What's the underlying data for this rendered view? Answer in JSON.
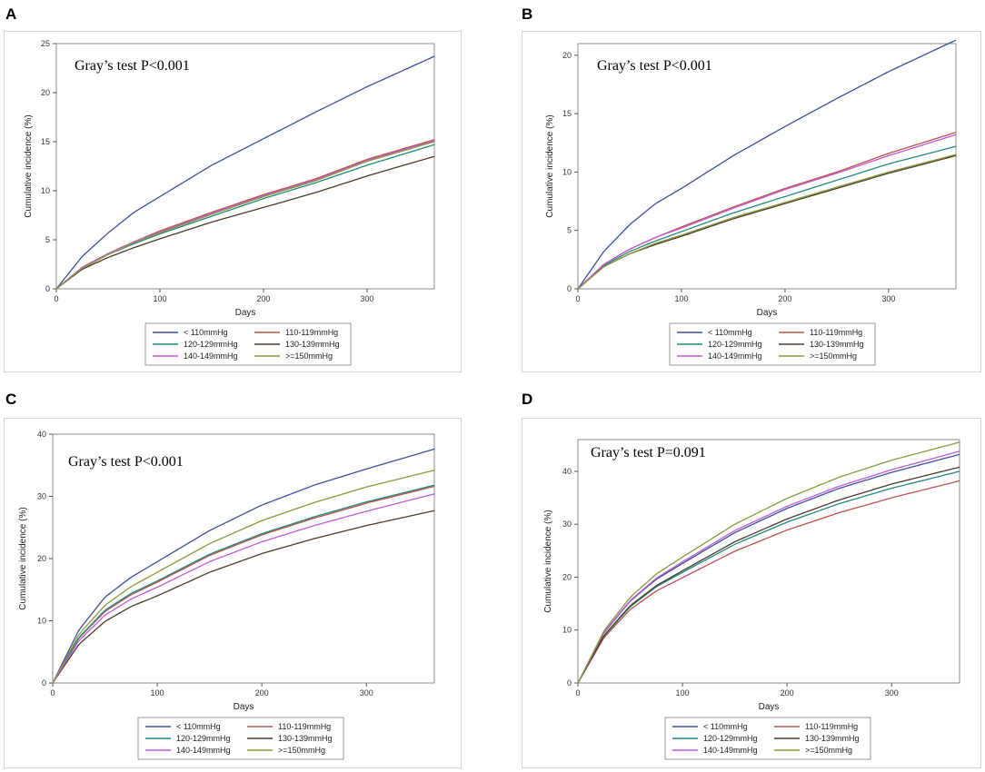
{
  "figure": {
    "panel_labels": [
      "A",
      "B",
      "C",
      "D"
    ]
  },
  "chart_data": [
    {
      "panel": "A",
      "type": "line",
      "annotation": "Gray’s test P<0.001",
      "xlabel": "Days",
      "ylabel": "Cumulative incidence (%)",
      "xlim": [
        0,
        365
      ],
      "ylim": [
        0,
        25
      ],
      "xticks": [
        0,
        100,
        200,
        300
      ],
      "yticks": [
        0,
        5,
        10,
        15,
        20,
        25
      ],
      "x": [
        0,
        25,
        50,
        75,
        100,
        150,
        200,
        250,
        300,
        365
      ],
      "series": [
        {
          "name": "< 110mmHg",
          "color": "#3c4f9e",
          "values": [
            0,
            3.3,
            5.7,
            7.8,
            9.4,
            12.6,
            15.3,
            18.0,
            20.6,
            23.7
          ]
        },
        {
          "name": "110-119mmHg",
          "color": "#c0504d",
          "values": [
            0,
            2.2,
            3.6,
            4.8,
            5.9,
            7.8,
            9.6,
            11.2,
            13.2,
            15.2
          ]
        },
        {
          "name": "120-129mmHg",
          "color": "#1f8a7c",
          "values": [
            0,
            2.1,
            3.5,
            4.6,
            5.6,
            7.4,
            9.2,
            10.8,
            12.6,
            14.7
          ]
        },
        {
          "name": "130-139mmHg",
          "color": "#4a3a2a",
          "values": [
            0,
            2.0,
            3.2,
            4.2,
            5.1,
            6.8,
            8.3,
            9.8,
            11.5,
            13.5
          ]
        },
        {
          "name": "140-149mmHg",
          "color": "#c25ad6",
          "values": [
            0,
            2.2,
            3.6,
            4.8,
            5.8,
            7.7,
            9.5,
            11.1,
            13.1,
            15.1
          ]
        },
        {
          "name": ">=150mmHg",
          "color": "#8a9a3a",
          "values": [
            0,
            2.1,
            3.5,
            4.7,
            5.7,
            7.6,
            9.4,
            11.0,
            13.0,
            15.0
          ]
        }
      ]
    },
    {
      "panel": "B",
      "type": "line",
      "annotation": "Gray’s test P<0.001",
      "xlabel": "Days",
      "ylabel": "Cumulative incidence (%)",
      "xlim": [
        0,
        365
      ],
      "ylim": [
        0,
        21
      ],
      "xticks": [
        0,
        100,
        200,
        300
      ],
      "yticks": [
        0,
        5,
        10,
        15,
        20
      ],
      "x": [
        0,
        25,
        50,
        75,
        100,
        150,
        200,
        250,
        300,
        365
      ],
      "series": [
        {
          "name": "< 110mmHg",
          "color": "#3c4f9e",
          "values": [
            0,
            3.2,
            5.5,
            7.3,
            8.6,
            11.4,
            13.9,
            16.3,
            18.6,
            21.3
          ]
        },
        {
          "name": "110-119mmHg",
          "color": "#c0504d",
          "values": [
            0,
            2.1,
            3.4,
            4.4,
            5.3,
            7.0,
            8.6,
            10.0,
            11.6,
            13.4
          ]
        },
        {
          "name": "120-129mmHg",
          "color": "#1f8a7c",
          "values": [
            0,
            2.0,
            3.2,
            4.1,
            4.9,
            6.5,
            7.9,
            9.3,
            10.7,
            12.2
          ]
        },
        {
          "name": "130-139mmHg",
          "color": "#4a3a2a",
          "values": [
            0,
            1.9,
            3.0,
            3.8,
            4.5,
            6.0,
            7.3,
            8.6,
            9.9,
            11.4
          ]
        },
        {
          "name": "140-149mmHg",
          "color": "#c25ad6",
          "values": [
            0,
            2.1,
            3.4,
            4.4,
            5.2,
            6.9,
            8.5,
            9.9,
            11.4,
            13.2
          ]
        },
        {
          "name": ">=150mmHg",
          "color": "#8a9a3a",
          "values": [
            0,
            1.9,
            3.0,
            3.9,
            4.6,
            6.1,
            7.4,
            8.7,
            10.0,
            11.5
          ]
        }
      ]
    },
    {
      "panel": "C",
      "type": "line",
      "annotation": "Gray’s test P<0.001",
      "xlabel": "Days",
      "ylabel": "Cumulative incidence (%)",
      "xlim": [
        0,
        365
      ],
      "ylim": [
        0,
        40
      ],
      "xticks": [
        0,
        100,
        200,
        300
      ],
      "yticks": [
        0,
        10,
        20,
        30,
        40
      ],
      "x": [
        0,
        25,
        50,
        75,
        100,
        150,
        200,
        250,
        300,
        365
      ],
      "series": [
        {
          "name": "< 110mmHg",
          "color": "#3c4f9e",
          "values": [
            0,
            8.5,
            13.8,
            17.0,
            19.5,
            24.5,
            28.6,
            31.8,
            34.4,
            37.6
          ]
        },
        {
          "name": "110-119mmHg",
          "color": "#c0504d",
          "values": [
            0,
            7.2,
            11.5,
            14.2,
            16.2,
            20.5,
            23.8,
            26.5,
            28.9,
            31.6
          ]
        },
        {
          "name": "120-129mmHg",
          "color": "#1f8a7c",
          "values": [
            0,
            7.3,
            11.7,
            14.4,
            16.4,
            20.7,
            24.0,
            26.7,
            29.1,
            31.8
          ]
        },
        {
          "name": "130-139mmHg",
          "color": "#4a3a2a",
          "values": [
            0,
            6.2,
            9.9,
            12.3,
            14.0,
            17.8,
            20.8,
            23.2,
            25.3,
            27.7
          ]
        },
        {
          "name": "140-149mmHg",
          "color": "#c25ad6",
          "values": [
            0,
            6.8,
            10.9,
            13.5,
            15.4,
            19.5,
            22.7,
            25.3,
            27.6,
            30.4
          ]
        },
        {
          "name": ">=150mmHg",
          "color": "#8a9a3a",
          "values": [
            0,
            7.8,
            12.5,
            15.5,
            17.8,
            22.4,
            26.1,
            29.0,
            31.5,
            34.2
          ]
        }
      ]
    },
    {
      "panel": "D",
      "type": "line",
      "annotation": "Gray’s test P=0.091",
      "xlabel": "Days",
      "ylabel": "Cumulative incidence (%)",
      "xlim": [
        0,
        365
      ],
      "ylim": [
        0,
        46
      ],
      "xticks": [
        0,
        100,
        200,
        300
      ],
      "yticks": [
        0,
        10,
        20,
        30,
        40
      ],
      "x": [
        0,
        25,
        50,
        75,
        100,
        150,
        200,
        250,
        300,
        365
      ],
      "series": [
        {
          "name": "< 110mmHg",
          "color": "#3c4f9e",
          "values": [
            0,
            9.5,
            15.5,
            19.6,
            22.6,
            28.4,
            33.0,
            36.8,
            39.8,
            43.2
          ]
        },
        {
          "name": "110-119mmHg",
          "color": "#c0504d",
          "values": [
            0,
            8.6,
            13.9,
            17.4,
            19.9,
            24.9,
            28.9,
            32.2,
            35.0,
            38.2
          ]
        },
        {
          "name": "120-129mmHg",
          "color": "#1f8a7c",
          "values": [
            0,
            8.9,
            14.4,
            18.2,
            20.9,
            26.2,
            30.4,
            33.9,
            36.8,
            40.0
          ]
        },
        {
          "name": "130-139mmHg",
          "color": "#4a3a2a",
          "values": [
            0,
            9.0,
            14.6,
            18.4,
            21.2,
            26.7,
            31.0,
            34.6,
            37.6,
            40.8
          ]
        },
        {
          "name": "140-149mmHg",
          "color": "#c25ad6",
          "values": [
            0,
            9.6,
            15.6,
            19.8,
            22.9,
            28.8,
            33.4,
            37.2,
            40.3,
            43.8
          ]
        },
        {
          "name": ">=150mmHg",
          "color": "#8a9a3a",
          "values": [
            0,
            9.9,
            16.2,
            20.6,
            23.8,
            30.0,
            34.9,
            38.9,
            42.1,
            45.5
          ]
        }
      ]
    }
  ]
}
